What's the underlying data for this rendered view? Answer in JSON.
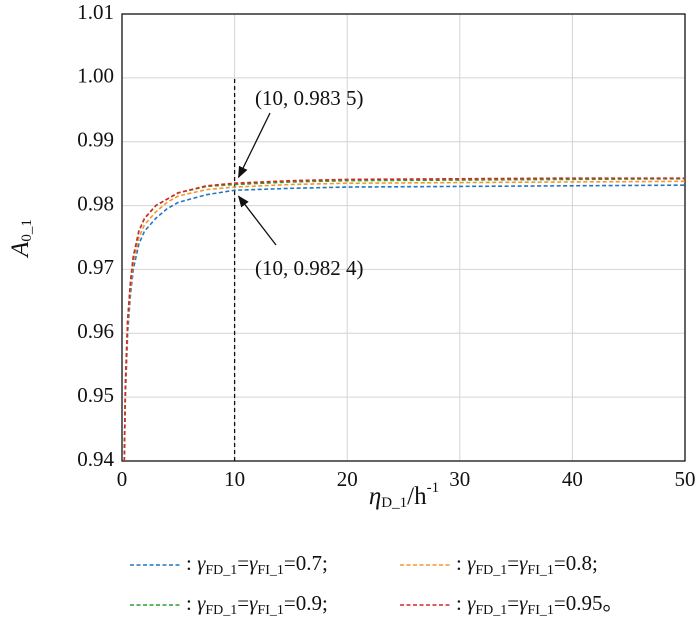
{
  "chart_data": {
    "type": "line",
    "x_label": "ηD_1/h-1",
    "y_label": "A0_1",
    "x": [
      0.2,
      0.3,
      0.5,
      0.75,
      1,
      1.5,
      2,
      3,
      4,
      5,
      7.5,
      10,
      15,
      20,
      30,
      40,
      50
    ],
    "series": [
      {
        "name": ": γFD_1=γFI_1=0.7;",
        "color": "#1f77c4",
        "values": [
          0.94,
          0.95,
          0.96,
          0.966,
          0.97,
          0.974,
          0.976,
          0.978,
          0.9795,
          0.9805,
          0.9817,
          0.9824,
          0.9827,
          0.9829,
          0.983,
          0.9831,
          0.9832
        ]
      },
      {
        "name": ": γFD_1=γFI_1=0.8;",
        "color": "#f5962a",
        "values": [
          0.94,
          0.951,
          0.961,
          0.967,
          0.971,
          0.975,
          0.977,
          0.979,
          0.9805,
          0.9815,
          0.9825,
          0.9829,
          0.9833,
          0.9835,
          0.9836,
          0.9837,
          0.9838
        ]
      },
      {
        "name": ": γFD_1=γFI_1=0.9;",
        "color": "#2ca02c",
        "values": [
          0.94,
          0.952,
          0.962,
          0.968,
          0.972,
          0.976,
          0.978,
          0.98,
          0.981,
          0.982,
          0.983,
          0.9833,
          0.9837,
          0.9839,
          0.984,
          0.9841,
          0.9842
        ]
      },
      {
        "name": ": γFD_1=γFI_1=0.95。",
        "color": "#d62728",
        "values": [
          0.94,
          0.952,
          0.962,
          0.968,
          0.972,
          0.976,
          0.978,
          0.98,
          0.981,
          0.982,
          0.9831,
          0.9835,
          0.9839,
          0.9841,
          0.9842,
          0.9843,
          0.9843
        ]
      }
    ],
    "xlim": [
      0,
      50
    ],
    "xticks": [
      0,
      10,
      20,
      30,
      40,
      50
    ],
    "ylim": [
      0.94,
      1.01
    ],
    "yticks": [
      0.94,
      0.95,
      0.96,
      0.97,
      0.98,
      0.99,
      {
        "value": 1,
        "label": "1.00"
      },
      1.01
    ],
    "grid": true,
    "reference_line": {
      "x": 10,
      "top": 1
    },
    "annotations": [
      {
        "text": "(10, 0.983 5)",
        "x": 10,
        "y": 0.9835
      },
      {
        "text": "(10, 0.982 4)",
        "x": 10,
        "y": 0.9824
      }
    ]
  }
}
